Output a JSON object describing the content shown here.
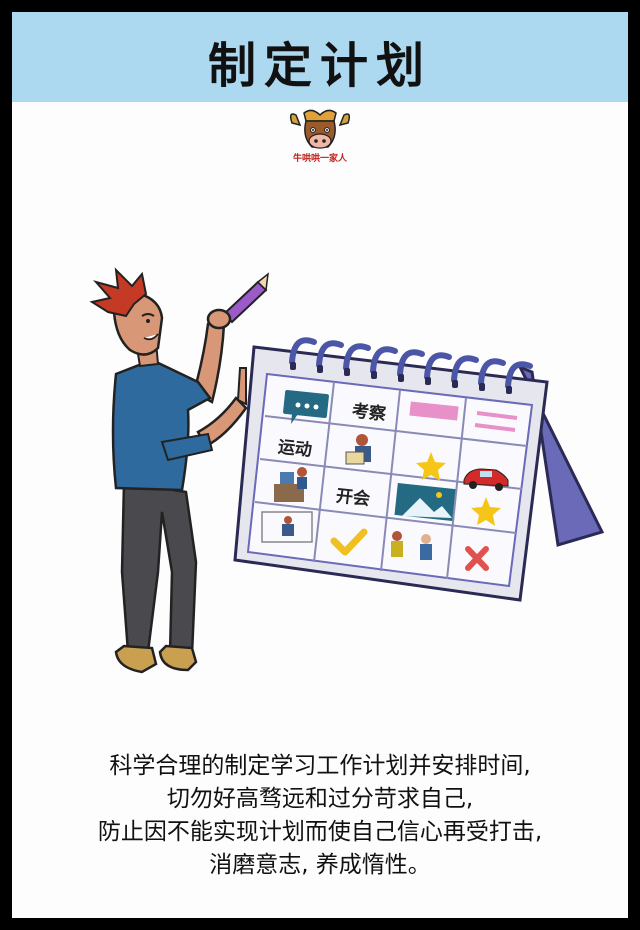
{
  "header": {
    "title": "制定计划"
  },
  "logo": {
    "text": "牛哄哄一家人"
  },
  "calendar": {
    "labels": {
      "inspect": "考察",
      "exercise": "运动",
      "meeting": "开会"
    }
  },
  "caption": {
    "lines": [
      "科学合理的制定学习工作计划并安排时间,",
      "切勿好高骛远和过分苛求自己,",
      "防止因不能实现计划而使自己信心再受打击,",
      "消磨意志, 养成惰性。"
    ]
  },
  "colors": {
    "header_bg": "#acd8f0",
    "calendar_frame": "#6a6ab8",
    "ring": "#4b56a6",
    "star": "#f5c518",
    "check": "#f0c020",
    "cross": "#e0524e",
    "pink": "#e890c8"
  }
}
